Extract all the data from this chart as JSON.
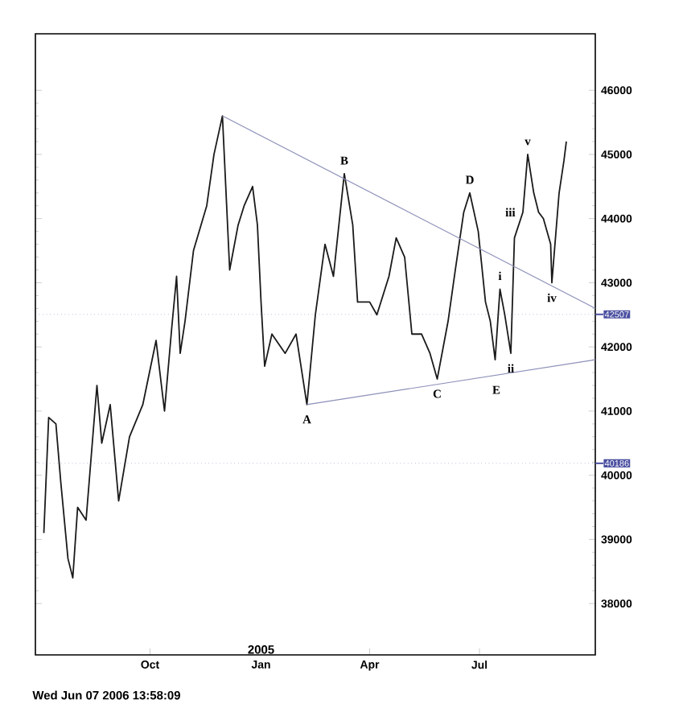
{
  "chart_data": {
    "type": "line",
    "xlim": [
      "2004-06-28",
      "2005-10-05"
    ],
    "ylim": [
      37200,
      46880
    ],
    "xticks": [
      {
        "value": "2004-10-01",
        "label": "Oct"
      },
      {
        "value": "2005-01-01",
        "label": "Jan"
      },
      {
        "value": "2005-04-01",
        "label": "Apr"
      },
      {
        "value": "2005-07-01",
        "label": "Jul"
      }
    ],
    "yticks": [
      38000,
      39000,
      40000,
      41000,
      42000,
      43000,
      44000,
      45000,
      46000
    ],
    "grid": false,
    "series": [
      {
        "color": "#1a1a1a",
        "x": [
          "2004-07-05",
          "2004-07-09",
          "2004-07-15",
          "2004-07-19",
          "2004-07-25",
          "2004-07-29",
          "2004-08-02",
          "2004-08-09",
          "2004-08-18",
          "2004-08-22",
          "2004-08-29",
          "2004-09-05",
          "2004-09-14",
          "2004-09-25",
          "2004-10-06",
          "2004-10-13",
          "2004-10-19",
          "2004-10-23",
          "2004-10-26",
          "2004-10-30",
          "2004-11-06",
          "2004-11-17",
          "2004-11-23",
          "2004-11-30",
          "2004-12-06",
          "2004-12-13",
          "2004-12-18",
          "2004-12-25",
          "2004-12-29",
          "2005-01-01",
          "2005-01-04",
          "2005-01-10",
          "2005-01-21",
          "2005-01-30",
          "2005-02-08",
          "2005-02-15",
          "2005-02-23",
          "2005-03-02",
          "2005-03-11",
          "2005-03-18",
          "2005-03-22",
          "2005-04-01",
          "2005-04-07",
          "2005-04-17",
          "2005-04-23",
          "2005-04-30",
          "2005-05-06",
          "2005-05-14",
          "2005-05-21",
          "2005-05-27",
          "2005-06-05",
          "2005-06-11",
          "2005-06-18",
          "2005-06-23",
          "2005-06-30",
          "2005-07-06",
          "2005-07-10",
          "2005-07-14",
          "2005-07-18",
          "2005-07-22",
          "2005-07-27",
          "2005-07-30",
          "2005-08-06",
          "2005-08-10",
          "2005-08-15",
          "2005-08-19",
          "2005-08-23",
          "2005-08-29",
          "2005-08-30",
          "2005-09-05",
          "2005-09-09",
          "2005-09-11"
        ],
        "values": [
          39100,
          40900,
          40800,
          39900,
          38700,
          38400,
          39500,
          39300,
          41400,
          40500,
          41100,
          39600,
          40600,
          41100,
          42100,
          41000,
          42300,
          43100,
          41900,
          42400,
          43500,
          44200,
          45000,
          45600,
          43200,
          43900,
          44200,
          44500,
          43900,
          42700,
          41700,
          42200,
          41900,
          42200,
          41100,
          42500,
          43600,
          43100,
          44700,
          43900,
          42700,
          42700,
          42500,
          43100,
          43700,
          43400,
          42200,
          42200,
          41900,
          41500,
          42400,
          43200,
          44100,
          44400,
          43800,
          42700,
          42400,
          41800,
          42900,
          42500,
          41900,
          43700,
          44100,
          45000,
          44400,
          44100,
          44000,
          43600,
          43000,
          44400,
          44900,
          45200
        ]
      },
      {
        "type": "line",
        "color": "#8c90b8",
        "x": [
          "2004-11-30",
          "2005-10-05"
        ],
        "values": [
          45600,
          42600
        ]
      },
      {
        "type": "line",
        "color": "#8c90b8",
        "x": [
          "2005-02-08",
          "2005-10-05"
        ],
        "values": [
          41100,
          41800
        ]
      }
    ],
    "ref_lines": [
      {
        "axis": "y",
        "value": 42507,
        "label": "42507",
        "color": "#4a4fa0"
      },
      {
        "axis": "y",
        "value": 40186,
        "label": "40186",
        "color": "#4a4fa0"
      }
    ],
    "annotations": [
      {
        "text": "A",
        "x": "2005-02-08",
        "y": 41100
      },
      {
        "text": "B",
        "x": "2005-03-11",
        "y": 44700
      },
      {
        "text": "C",
        "x": "2005-05-27",
        "y": 41500
      },
      {
        "text": "D",
        "x": "2005-06-23",
        "y": 44400
      },
      {
        "text": "E",
        "x": "2005-07-15",
        "y": 41560
      },
      {
        "text": "i",
        "x": "2005-07-18",
        "y": 42900
      },
      {
        "text": "ii",
        "x": "2005-07-27",
        "y": 41900
      },
      {
        "text": "iii",
        "x": "2005-08-06",
        "y": 44100
      },
      {
        "text": "iv",
        "x": "2005-08-30",
        "y": 43000
      },
      {
        "text": "v",
        "x": "2005-08-10",
        "y": 45000
      },
      "2005",
      "Wed Jun 07 2006 13:58:09"
    ]
  }
}
